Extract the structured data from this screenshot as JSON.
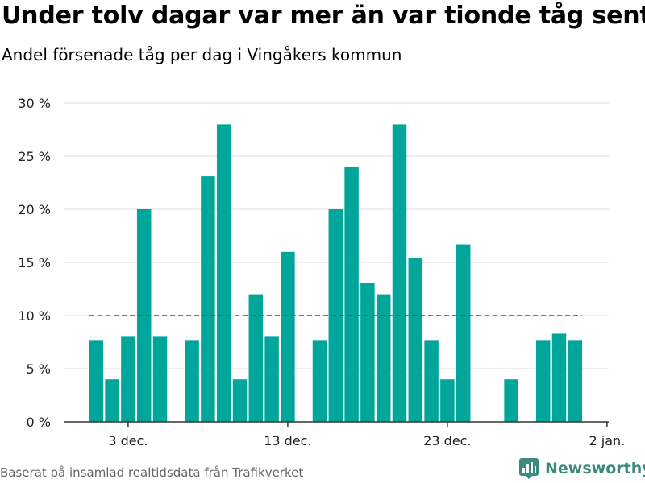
{
  "title": "Under tolv dagar var mer än var tionde tåg sent",
  "subtitle": "Andel försenade tåg per dag i Vingåkers kommun",
  "source": "Baserat på insamlad realtidsdata från Trafikverket",
  "brand": {
    "name": "Newsworthy",
    "icon": "bar-chart-logo-icon"
  },
  "colors": {
    "bar": "#00a69a",
    "grid": "#dddddd",
    "reference_line": "#555555",
    "axis": "#333333"
  },
  "chart_data": {
    "type": "bar",
    "x": [
      "1 dec.",
      "2 dec.",
      "3 dec.",
      "4 dec.",
      "5 dec.",
      "6 dec.",
      "7 dec.",
      "8 dec.",
      "9 dec.",
      "10 dec.",
      "11 dec.",
      "12 dec.",
      "13 dec.",
      "14 dec.",
      "15 dec.",
      "16 dec.",
      "17 dec.",
      "18 dec.",
      "19 dec.",
      "20 dec.",
      "21 dec.",
      "22 dec.",
      "23 dec.",
      "24 dec.",
      "25 dec.",
      "26 dec.",
      "27 dec.",
      "28 dec.",
      "29 dec.",
      "30 dec.",
      "31 dec."
    ],
    "values": [
      7.7,
      4,
      8,
      20,
      8,
      null,
      7.7,
      23.1,
      28,
      4,
      12,
      8,
      16,
      null,
      7.7,
      20,
      24,
      13.1,
      12,
      28,
      15.4,
      7.7,
      4,
      16.7,
      null,
      null,
      4,
      null,
      7.7,
      8.3,
      7.7
    ],
    "ylim": [
      0,
      30
    ],
    "yticks": [
      0,
      5,
      10,
      15,
      20,
      25,
      30
    ],
    "ytick_labels": [
      "0 %",
      "5 %",
      "10 %",
      "15 %",
      "20 %",
      "25 %",
      "30 %"
    ],
    "xticks": [
      "3 dec.",
      "13 dec.",
      "23 dec.",
      "2 jan."
    ],
    "xtick_days": [
      3,
      13,
      23,
      33
    ],
    "reference_line": 10,
    "grid": true
  }
}
